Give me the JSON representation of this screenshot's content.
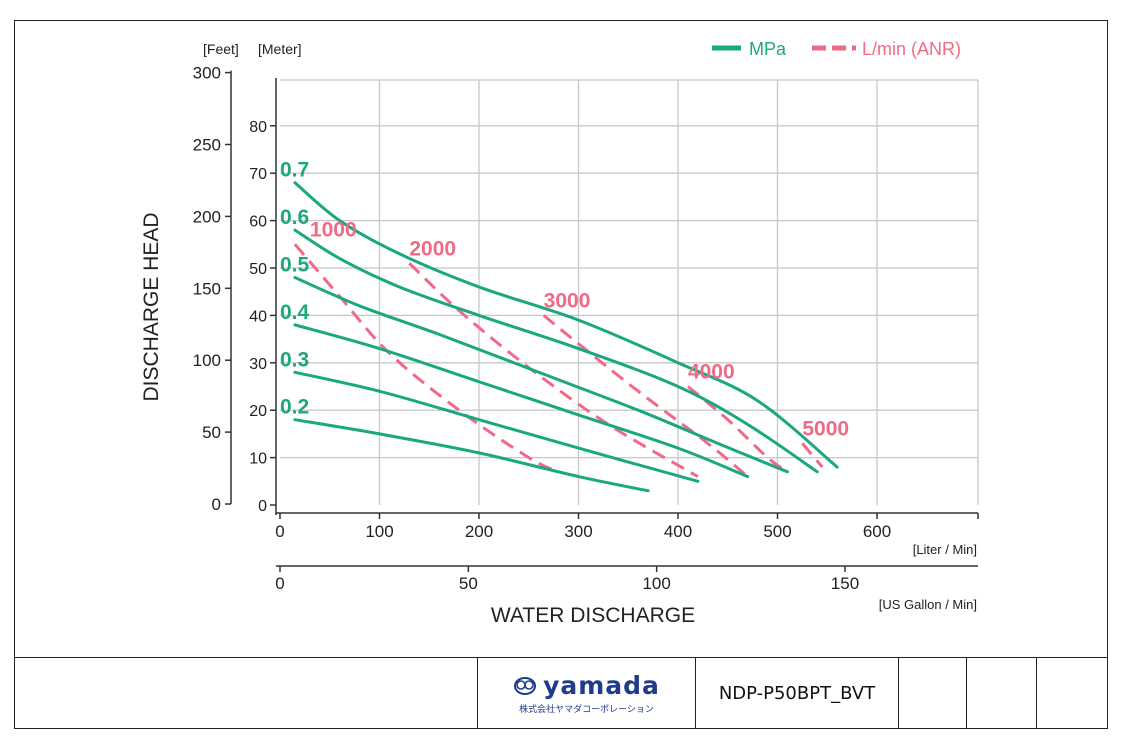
{
  "chart_data": {
    "type": "line",
    "ylabel": "DISCHARGE HEAD",
    "xlabel": "WATER DISCHARGE",
    "y_units_left": "[Feet]",
    "y_units_right": "[Meter]",
    "x_units_primary": "[Liter / Min]",
    "x_units_secondary": "[US Gallon / Min]",
    "feet_ticks": [
      "0",
      "50",
      "100",
      "150",
      "200",
      "250",
      "300"
    ],
    "meter_ticks": [
      "0",
      "10",
      "20",
      "30",
      "40",
      "50",
      "60",
      "70",
      "80"
    ],
    "liter_ticks": [
      "0",
      "100",
      "200",
      "300",
      "400",
      "500",
      "600"
    ],
    "gallon_ticks": [
      "0",
      "50",
      "100",
      "150"
    ],
    "xlim": [
      0,
      700
    ],
    "ylim": [
      0,
      90
    ],
    "grid": true,
    "legend_position": "top-right",
    "legend": {
      "mpa": "MPa",
      "air": "L/min (ANR)"
    },
    "colors": {
      "mpa": "#1aa87e",
      "air": "#f06a86",
      "grid": "#c8c8c8",
      "axis": "#333333"
    },
    "series": [
      {
        "name": "0.7",
        "kind": "mpa",
        "x": [
          15,
          60,
          120,
          200,
          300,
          400,
          480,
          560
        ],
        "y": [
          68,
          60,
          53,
          46,
          39,
          30,
          22,
          8
        ]
      },
      {
        "name": "0.6",
        "kind": "mpa",
        "x": [
          15,
          60,
          120,
          200,
          300,
          400,
          470,
          540
        ],
        "y": [
          58,
          52,
          46,
          40,
          33,
          25,
          17,
          7
        ]
      },
      {
        "name": "0.5",
        "kind": "mpa",
        "x": [
          15,
          80,
          160,
          260,
          360,
          440,
          510
        ],
        "y": [
          48,
          42,
          36,
          28,
          20,
          13,
          7
        ]
      },
      {
        "name": "0.4",
        "kind": "mpa",
        "x": [
          15,
          100,
          200,
          300,
          400,
          470
        ],
        "y": [
          38,
          33,
          26,
          19,
          12,
          6
        ]
      },
      {
        "name": "0.3",
        "kind": "mpa",
        "x": [
          15,
          100,
          200,
          300,
          420
        ],
        "y": [
          28,
          24,
          18,
          12,
          5
        ]
      },
      {
        "name": "0.2",
        "kind": "mpa",
        "x": [
          15,
          100,
          200,
          300,
          370
        ],
        "y": [
          18,
          15,
          11,
          6,
          3
        ]
      },
      {
        "name": "1000",
        "kind": "air",
        "x": [
          15,
          60,
          110,
          180,
          250,
          280
        ],
        "y": [
          55,
          44,
          32,
          20,
          10,
          7
        ]
      },
      {
        "name": "2000",
        "kind": "air",
        "x": [
          130,
          180,
          250,
          330,
          420
        ],
        "y": [
          51,
          41,
          29,
          17,
          6
        ]
      },
      {
        "name": "3000",
        "kind": "air",
        "x": [
          265,
          300,
          360,
          430,
          470
        ],
        "y": [
          40,
          34,
          24,
          13,
          6
        ]
      },
      {
        "name": "4000",
        "kind": "air",
        "x": [
          410,
          450,
          490,
          510
        ],
        "y": [
          25,
          18,
          10,
          7
        ]
      },
      {
        "name": "5000",
        "kind": "air",
        "x": [
          525,
          545
        ],
        "y": [
          13,
          8
        ]
      }
    ],
    "labels": {
      "mpa": [
        "0.7",
        "0.6",
        "0.5",
        "0.4",
        "0.3",
        "0.2"
      ],
      "air": [
        "1000",
        "2000",
        "3000",
        "4000",
        "5000"
      ]
    }
  },
  "footer": {
    "logo_text": "yamada",
    "logo_sub": "株式会社ヤマダコーポレーション",
    "model": "NDP-P50BPT_BVT"
  }
}
